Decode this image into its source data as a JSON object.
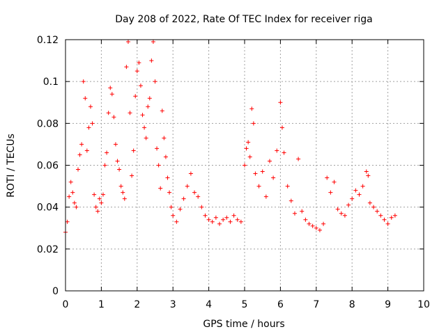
{
  "chart_data": {
    "type": "scatter",
    "title": "Day 208 of 2022, Rate Of TEC Index for receiver riga",
    "xlabel": "GPS time / hours",
    "ylabel": "ROTI / TECUs",
    "xlim": [
      0,
      10
    ],
    "ylim": [
      0,
      0.12
    ],
    "x_ticks": [
      "0",
      "1",
      "2",
      "3",
      "4",
      "5",
      "6",
      "7",
      "8",
      "9",
      "10"
    ],
    "y_ticks": [
      "0",
      "0.02",
      "0.04",
      "0.06",
      "0.08",
      "0.1",
      "0.12"
    ],
    "grid": true,
    "marker": "+",
    "series_color": "#ff0000",
    "x_data_range": [
      0,
      9.25
    ],
    "series": [
      {
        "x": [
          0.0,
          0.05,
          0.1,
          0.15,
          0.2,
          0.25,
          0.3,
          0.35,
          0.4,
          0.45,
          0.5,
          0.55,
          0.6,
          0.65,
          0.7,
          0.75,
          0.8,
          0.85,
          0.9,
          0.95,
          1.0,
          1.05,
          1.1,
          1.15,
          1.2,
          1.25,
          1.3,
          1.35,
          1.4,
          1.45,
          1.5,
          1.55,
          1.6,
          1.65,
          1.7,
          1.75,
          1.8,
          1.85,
          1.9,
          1.95,
          2.0,
          2.05,
          2.1,
          2.15,
          2.2,
          2.25,
          2.3,
          2.35,
          2.4,
          2.45,
          2.5,
          2.55,
          2.6,
          2.65,
          2.7,
          2.75,
          2.8,
          2.85,
          2.9,
          2.95,
          3.0,
          3.1,
          3.2,
          3.3,
          3.4,
          3.5,
          3.6,
          3.7,
          3.8,
          3.9,
          4.0,
          4.1,
          4.2,
          4.3,
          4.4,
          4.5,
          4.6,
          4.7,
          4.8,
          4.9,
          5.0,
          5.05,
          5.1,
          5.15,
          5.2,
          5.25,
          5.3,
          5.4,
          5.5,
          5.6,
          5.7,
          5.8,
          5.9,
          6.0,
          6.05,
          6.1,
          6.2,
          6.3,
          6.4,
          6.5,
          6.6,
          6.7,
          6.8,
          6.9,
          7.0,
          7.1,
          7.2,
          7.3,
          7.4,
          7.5,
          7.6,
          7.7,
          7.8,
          7.9,
          8.0,
          8.1,
          8.2,
          8.3,
          8.4,
          8.45,
          8.5,
          8.6,
          8.7,
          8.8,
          8.9,
          9.0,
          9.1,
          9.2
        ],
        "y": [
          0.028,
          0.033,
          0.045,
          0.052,
          0.047,
          0.042,
          0.04,
          0.058,
          0.065,
          0.07,
          0.1,
          0.092,
          0.067,
          0.078,
          0.088,
          0.08,
          0.046,
          0.04,
          0.038,
          0.044,
          0.042,
          0.046,
          0.06,
          0.066,
          0.085,
          0.097,
          0.094,
          0.083,
          0.07,
          0.062,
          0.058,
          0.05,
          0.047,
          0.044,
          0.107,
          0.119,
          0.085,
          0.055,
          0.067,
          0.093,
          0.105,
          0.109,
          0.098,
          0.084,
          0.078,
          0.073,
          0.088,
          0.092,
          0.11,
          0.119,
          0.1,
          0.068,
          0.06,
          0.049,
          0.086,
          0.073,
          0.064,
          0.054,
          0.047,
          0.04,
          0.036,
          0.033,
          0.039,
          0.044,
          0.05,
          0.056,
          0.047,
          0.045,
          0.04,
          0.036,
          0.034,
          0.033,
          0.035,
          0.032,
          0.034,
          0.035,
          0.033,
          0.036,
          0.034,
          0.033,
          0.06,
          0.068,
          0.071,
          0.064,
          0.087,
          0.08,
          0.056,
          0.05,
          0.057,
          0.045,
          0.062,
          0.054,
          0.067,
          0.09,
          0.078,
          0.066,
          0.05,
          0.043,
          0.037,
          0.063,
          0.038,
          0.034,
          0.032,
          0.031,
          0.03,
          0.029,
          0.032,
          0.054,
          0.047,
          0.052,
          0.039,
          0.037,
          0.036,
          0.041,
          0.044,
          0.048,
          0.046,
          0.05,
          0.057,
          0.055,
          0.042,
          0.04,
          0.038,
          0.036,
          0.034,
          0.032,
          0.035,
          0.036
        ]
      }
    ]
  }
}
